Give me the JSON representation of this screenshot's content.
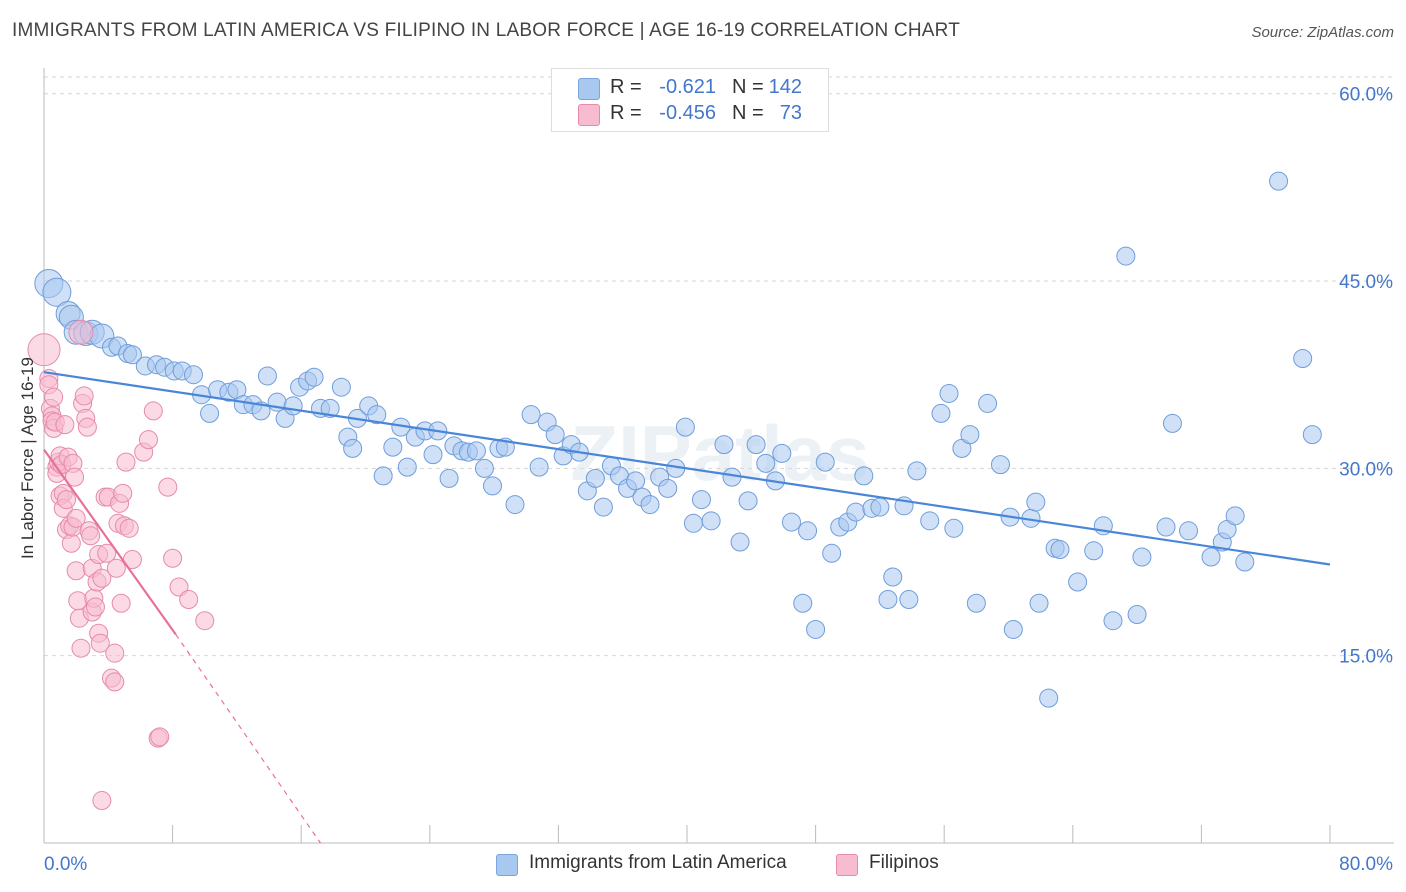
{
  "title": "IMMIGRANTS FROM LATIN AMERICA VS FILIPINO IN LABOR FORCE | AGE 16-19 CORRELATION CHART",
  "source": "Source: ZipAtlas.com",
  "watermark": "ZIPatlas",
  "stats": [
    {
      "r_label": "R =",
      "r_value": "-0.621",
      "n_label": "N =",
      "n_value": "142",
      "color": "#a9c8f0",
      "border": "#7aa5dd"
    },
    {
      "r_label": "R =",
      "r_value": "-0.456",
      "n_label": "N =",
      "n_value": "73",
      "color": "#f7bcd0",
      "border": "#e88aab"
    }
  ],
  "legend": [
    {
      "label": "Immigrants from Latin America",
      "color": "#a9c8f0",
      "border": "#7aa5dd"
    },
    {
      "label": "Filipinos",
      "color": "#f7bcd0",
      "border": "#e88aab"
    }
  ],
  "chart_data": {
    "type": "scatter",
    "xlabel": "",
    "ylabel": "In Labor Force | Age 16-19",
    "xlim": [
      0,
      80
    ],
    "ylim": [
      0,
      61.5
    ],
    "x_tick_labels": [
      "0.0%",
      "80.0%"
    ],
    "y_ticks": [
      15,
      30,
      45,
      60
    ],
    "y_tick_labels": [
      "15.0%",
      "30.0%",
      "45.0%",
      "60.0%"
    ],
    "grid": true,
    "colors": {
      "blue": "#4a86d8",
      "blue_fill": "#a9c8f0",
      "pink": "#e8709a",
      "pink_fill": "#f7bcd0"
    },
    "series": [
      {
        "name": "Immigrants from Latin America",
        "trend": {
          "x": [
            0,
            80
          ],
          "y": [
            37.7,
            22.3
          ]
        },
        "points": [
          [
            0.3,
            44.8
          ],
          [
            0.8,
            44.1
          ],
          [
            1.5,
            42.4
          ],
          [
            1.7,
            42.1
          ],
          [
            2.0,
            40.9
          ],
          [
            2.6,
            40.8
          ],
          [
            3.0,
            40.9
          ],
          [
            3.6,
            40.6
          ],
          [
            4.2,
            39.7
          ],
          [
            4.6,
            39.8
          ],
          [
            5.2,
            39.2
          ],
          [
            5.5,
            39.1
          ],
          [
            6.3,
            38.2
          ],
          [
            7.0,
            38.3
          ],
          [
            7.5,
            38.1
          ],
          [
            8.1,
            37.8
          ],
          [
            8.6,
            37.8
          ],
          [
            9.3,
            37.5
          ],
          [
            9.8,
            35.9
          ],
          [
            10.3,
            34.4
          ],
          [
            10.8,
            36.3
          ],
          [
            11.5,
            36.1
          ],
          [
            12.0,
            36.3
          ],
          [
            12.4,
            35.1
          ],
          [
            13.0,
            35.1
          ],
          [
            13.5,
            34.6
          ],
          [
            13.9,
            37.4
          ],
          [
            14.5,
            35.3
          ],
          [
            15.0,
            34.0
          ],
          [
            15.5,
            35.0
          ],
          [
            15.9,
            36.5
          ],
          [
            16.4,
            37.0
          ],
          [
            16.8,
            37.3
          ],
          [
            17.2,
            34.8
          ],
          [
            17.8,
            34.8
          ],
          [
            18.5,
            36.5
          ],
          [
            18.9,
            32.5
          ],
          [
            19.2,
            31.6
          ],
          [
            19.5,
            34.0
          ],
          [
            20.2,
            35.0
          ],
          [
            20.7,
            34.3
          ],
          [
            21.1,
            29.4
          ],
          [
            21.7,
            31.7
          ],
          [
            22.2,
            33.3
          ],
          [
            22.6,
            30.1
          ],
          [
            23.1,
            32.5
          ],
          [
            23.7,
            33.0
          ],
          [
            24.2,
            31.1
          ],
          [
            24.5,
            33.0
          ],
          [
            25.2,
            29.2
          ],
          [
            25.5,
            31.8
          ],
          [
            26.0,
            31.4
          ],
          [
            26.4,
            31.3
          ],
          [
            26.9,
            31.4
          ],
          [
            27.4,
            30.0
          ],
          [
            27.9,
            28.6
          ],
          [
            28.3,
            31.6
          ],
          [
            28.7,
            31.7
          ],
          [
            29.3,
            27.1
          ],
          [
            30.3,
            34.3
          ],
          [
            30.8,
            30.1
          ],
          [
            31.3,
            33.7
          ],
          [
            31.8,
            32.7
          ],
          [
            32.3,
            31.0
          ],
          [
            32.8,
            31.9
          ],
          [
            33.3,
            31.3
          ],
          [
            33.8,
            28.2
          ],
          [
            34.3,
            29.2
          ],
          [
            34.8,
            26.9
          ],
          [
            35.3,
            30.2
          ],
          [
            35.8,
            29.4
          ],
          [
            36.3,
            28.4
          ],
          [
            36.8,
            29.0
          ],
          [
            37.2,
            27.7
          ],
          [
            37.7,
            27.1
          ],
          [
            38.3,
            29.3
          ],
          [
            38.8,
            28.4
          ],
          [
            39.3,
            30.0
          ],
          [
            39.9,
            33.3
          ],
          [
            40.4,
            25.6
          ],
          [
            40.9,
            27.5
          ],
          [
            41.5,
            25.8
          ],
          [
            42.3,
            31.9
          ],
          [
            42.8,
            29.3
          ],
          [
            43.3,
            24.1
          ],
          [
            43.8,
            27.4
          ],
          [
            44.3,
            31.9
          ],
          [
            44.9,
            30.4
          ],
          [
            45.5,
            29.0
          ],
          [
            45.9,
            31.2
          ],
          [
            46.5,
            25.7
          ],
          [
            47.2,
            19.2
          ],
          [
            47.5,
            25.0
          ],
          [
            48.0,
            17.1
          ],
          [
            48.6,
            30.5
          ],
          [
            49.0,
            23.2
          ],
          [
            49.5,
            25.3
          ],
          [
            50.0,
            25.7
          ],
          [
            50.5,
            26.5
          ],
          [
            51.0,
            29.4
          ],
          [
            51.5,
            26.8
          ],
          [
            52.0,
            26.9
          ],
          [
            52.5,
            19.5
          ],
          [
            52.8,
            21.3
          ],
          [
            53.5,
            27.0
          ],
          [
            53.8,
            19.5
          ],
          [
            54.3,
            29.8
          ],
          [
            55.1,
            25.8
          ],
          [
            55.8,
            34.4
          ],
          [
            56.3,
            36.0
          ],
          [
            56.6,
            25.2
          ],
          [
            57.1,
            31.6
          ],
          [
            57.6,
            32.7
          ],
          [
            58.0,
            19.2
          ],
          [
            58.7,
            35.2
          ],
          [
            59.5,
            30.3
          ],
          [
            60.1,
            26.1
          ],
          [
            60.3,
            17.1
          ],
          [
            61.4,
            26.0
          ],
          [
            61.7,
            27.3
          ],
          [
            61.9,
            19.2
          ],
          [
            62.5,
            11.6
          ],
          [
            62.9,
            23.6
          ],
          [
            63.2,
            23.5
          ],
          [
            64.3,
            20.9
          ],
          [
            65.3,
            23.4
          ],
          [
            65.9,
            25.4
          ],
          [
            66.5,
            17.8
          ],
          [
            67.3,
            47.0
          ],
          [
            68.0,
            18.3
          ],
          [
            68.3,
            22.9
          ],
          [
            69.8,
            25.3
          ],
          [
            70.2,
            33.6
          ],
          [
            71.2,
            25.0
          ],
          [
            72.6,
            22.9
          ],
          [
            73.3,
            24.1
          ],
          [
            73.6,
            25.1
          ],
          [
            74.1,
            26.2
          ],
          [
            74.7,
            22.5
          ],
          [
            76.8,
            53.0
          ],
          [
            78.3,
            38.8
          ],
          [
            78.9,
            32.7
          ]
        ]
      },
      {
        "name": "Filipinos",
        "trend": {
          "x": [
            0,
            8.2
          ],
          "y": [
            31.5,
            16.7
          ]
        },
        "trend_dashed": {
          "x": [
            8.2,
            17.2
          ],
          "y": [
            16.7,
            0
          ]
        },
        "points": [
          [
            0.0,
            39.5
          ],
          [
            0.3,
            37.2
          ],
          [
            0.3,
            36.7
          ],
          [
            0.4,
            34.8
          ],
          [
            0.5,
            34.2
          ],
          [
            0.5,
            33.8
          ],
          [
            0.6,
            35.7
          ],
          [
            0.6,
            33.2
          ],
          [
            0.7,
            33.7
          ],
          [
            0.8,
            30.1
          ],
          [
            0.8,
            29.6
          ],
          [
            0.9,
            30.5
          ],
          [
            1.0,
            31.0
          ],
          [
            1.0,
            27.8
          ],
          [
            1.1,
            30.3
          ],
          [
            1.2,
            28.0
          ],
          [
            1.2,
            26.8
          ],
          [
            1.3,
            33.5
          ],
          [
            1.4,
            27.5
          ],
          [
            1.4,
            25.1
          ],
          [
            1.5,
            30.9
          ],
          [
            1.6,
            25.4
          ],
          [
            1.7,
            24.0
          ],
          [
            1.8,
            30.4
          ],
          [
            1.8,
            25.3
          ],
          [
            1.9,
            29.3
          ],
          [
            2.0,
            26.0
          ],
          [
            2.0,
            21.8
          ],
          [
            2.1,
            19.4
          ],
          [
            2.2,
            18.0
          ],
          [
            2.3,
            15.6
          ],
          [
            2.3,
            40.9
          ],
          [
            2.4,
            35.2
          ],
          [
            2.5,
            35.8
          ],
          [
            2.6,
            34.0
          ],
          [
            2.7,
            33.3
          ],
          [
            2.8,
            25.0
          ],
          [
            2.9,
            24.6
          ],
          [
            3.0,
            22.0
          ],
          [
            3.0,
            18.5
          ],
          [
            3.1,
            19.6
          ],
          [
            3.2,
            18.9
          ],
          [
            3.3,
            20.9
          ],
          [
            3.4,
            23.1
          ],
          [
            3.4,
            16.8
          ],
          [
            3.5,
            16.0
          ],
          [
            3.6,
            21.2
          ],
          [
            3.6,
            3.4
          ],
          [
            3.8,
            27.7
          ],
          [
            3.9,
            23.2
          ],
          [
            4.0,
            27.7
          ],
          [
            4.2,
            13.2
          ],
          [
            4.4,
            12.9
          ],
          [
            4.4,
            15.2
          ],
          [
            4.5,
            22.0
          ],
          [
            4.6,
            25.6
          ],
          [
            4.7,
            27.2
          ],
          [
            4.8,
            19.2
          ],
          [
            4.9,
            28.0
          ],
          [
            5.0,
            25.4
          ],
          [
            5.1,
            30.5
          ],
          [
            5.3,
            25.2
          ],
          [
            5.5,
            22.7
          ],
          [
            6.2,
            31.3
          ],
          [
            6.5,
            32.3
          ],
          [
            6.8,
            34.6
          ],
          [
            7.1,
            8.4
          ],
          [
            7.2,
            8.5
          ],
          [
            7.7,
            28.5
          ],
          [
            8.0,
            22.8
          ],
          [
            8.4,
            20.5
          ],
          [
            9.0,
            19.5
          ],
          [
            10.0,
            17.8
          ]
        ]
      }
    ]
  }
}
